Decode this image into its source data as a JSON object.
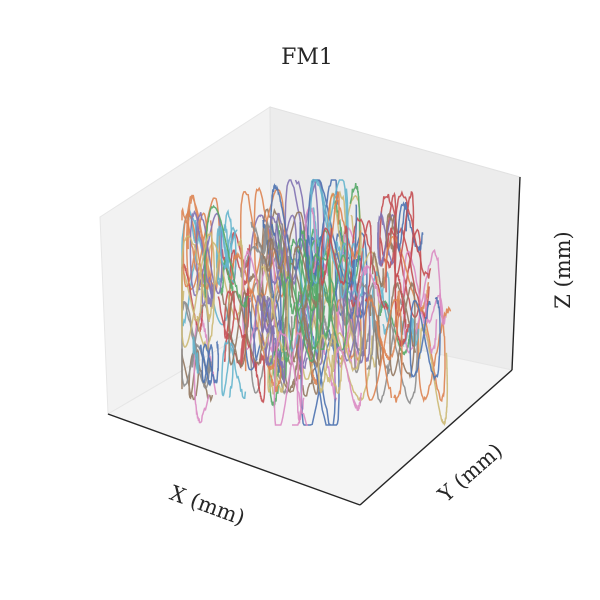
{
  "chart_data": {
    "type": "line",
    "projection": "3d",
    "title": "FM1",
    "xlabel": "X (mm)",
    "ylabel": "Y (mm)",
    "zlabel": "Z (mm)",
    "grid": false,
    "ticks_visible": false,
    "legend": "none",
    "pane_colors": {
      "left": "#f2f2f2",
      "right": "#ececec",
      "floor": "#f4f4f4"
    },
    "axis_color": "#262626",
    "series_palette": [
      "#4c72b0",
      "#dd8452",
      "#55a868",
      "#c44e52",
      "#8172b3",
      "#937860",
      "#da8bc3",
      "#8c8c8c",
      "#ccb974",
      "#64b5cd"
    ],
    "series_count": 120
  }
}
